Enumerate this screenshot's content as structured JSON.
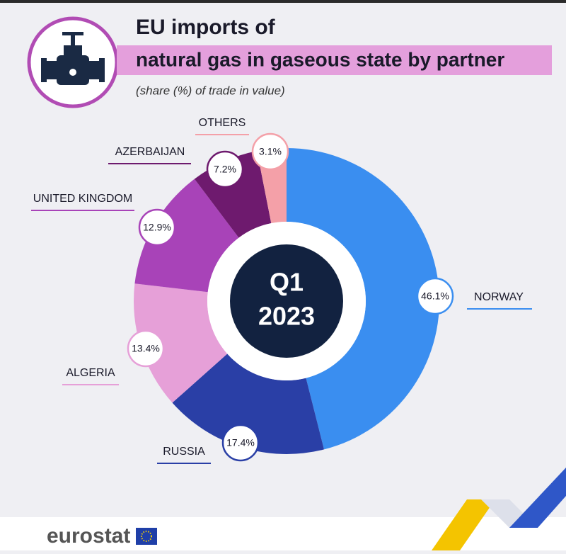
{
  "chart_data": {
    "type": "donut",
    "title": [
      "EU imports of",
      "natural gas in gaseous state by partner"
    ],
    "subtitle": "(share (%) of trade in value)",
    "center_label": [
      "Q1",
      "2023"
    ],
    "categories": [
      "NORWAY",
      "RUSSIA",
      "ALGERIA",
      "UNITED KINGDOM",
      "AZERBAIJAN",
      "OTHERS"
    ],
    "values": [
      46.1,
      17.4,
      13.4,
      12.9,
      7.2,
      3.1
    ],
    "value_labels": [
      "46.1%",
      "17.4%",
      "13.4%",
      "12.9%",
      "7.2%",
      "3.1%"
    ],
    "colors": [
      "#3a8ef0",
      "#2a3fa6",
      "#e6a0d8",
      "#a843b8",
      "#6e1a6e",
      "#f4a0a8"
    ]
  },
  "footer": {
    "brand": "eurostat"
  }
}
